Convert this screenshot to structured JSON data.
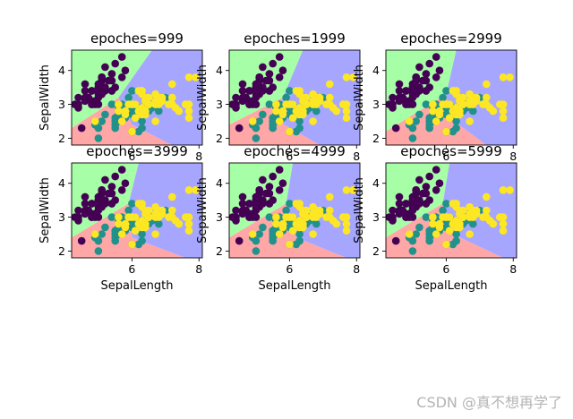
{
  "chart_data": {
    "type": "scatter",
    "subplot_grid": {
      "rows": 2,
      "cols": 3
    },
    "xlim": [
      4.2,
      8.1
    ],
    "ylim": [
      1.8,
      4.6
    ],
    "xticks": [
      6,
      8
    ],
    "yticks": [
      2,
      3,
      4
    ],
    "xlabel": "SepalLength",
    "ylabel": "SepalWidth",
    "region_colors": {
      "setosa": "#a6ffa6",
      "versicolor": "#ffa6a6",
      "virginica": "#a6a6ff"
    },
    "point_colors": {
      "setosa": "#440154",
      "versicolor": "#21918c",
      "virginica": "#fde725"
    },
    "points": {
      "setosa": [
        [
          5.1,
          3.5
        ],
        [
          4.9,
          3.0
        ],
        [
          4.7,
          3.2
        ],
        [
          4.6,
          3.1
        ],
        [
          5.0,
          3.6
        ],
        [
          5.4,
          3.9
        ],
        [
          4.6,
          3.4
        ],
        [
          5.0,
          3.4
        ],
        [
          4.4,
          2.9
        ],
        [
          4.9,
          3.1
        ],
        [
          5.4,
          3.7
        ],
        [
          4.8,
          3.4
        ],
        [
          4.8,
          3.0
        ],
        [
          4.3,
          3.0
        ],
        [
          5.8,
          4.0
        ],
        [
          5.7,
          4.4
        ],
        [
          5.4,
          3.9
        ],
        [
          5.1,
          3.5
        ],
        [
          5.7,
          3.8
        ],
        [
          5.1,
          3.8
        ],
        [
          5.4,
          3.4
        ],
        [
          5.1,
          3.7
        ],
        [
          4.6,
          3.6
        ],
        [
          5.1,
          3.3
        ],
        [
          4.8,
          3.4
        ],
        [
          5.0,
          3.0
        ],
        [
          5.0,
          3.4
        ],
        [
          5.2,
          3.5
        ],
        [
          5.2,
          3.4
        ],
        [
          4.7,
          3.2
        ],
        [
          4.8,
          3.1
        ],
        [
          5.4,
          3.4
        ],
        [
          5.2,
          4.1
        ],
        [
          5.5,
          4.2
        ],
        [
          4.9,
          3.1
        ],
        [
          5.0,
          3.2
        ],
        [
          5.5,
          3.5
        ],
        [
          4.4,
          3.0
        ],
        [
          5.1,
          3.4
        ],
        [
          5.0,
          3.5
        ],
        [
          4.5,
          2.3
        ],
        [
          4.4,
          3.2
        ],
        [
          5.0,
          3.5
        ],
        [
          5.1,
          3.8
        ],
        [
          4.8,
          3.0
        ],
        [
          5.1,
          3.8
        ],
        [
          4.6,
          3.2
        ],
        [
          5.3,
          3.7
        ],
        [
          5.0,
          3.3
        ]
      ],
      "versicolor": [
        [
          7.0,
          3.2
        ],
        [
          6.4,
          3.2
        ],
        [
          6.9,
          3.1
        ],
        [
          5.5,
          2.3
        ],
        [
          6.5,
          2.8
        ],
        [
          5.7,
          2.8
        ],
        [
          6.3,
          3.3
        ],
        [
          4.9,
          2.4
        ],
        [
          6.6,
          2.9
        ],
        [
          5.2,
          2.7
        ],
        [
          5.0,
          2.0
        ],
        [
          5.9,
          3.0
        ],
        [
          6.0,
          2.2
        ],
        [
          6.1,
          2.9
        ],
        [
          5.6,
          2.9
        ],
        [
          6.7,
          3.1
        ],
        [
          5.6,
          3.0
        ],
        [
          5.8,
          2.7
        ],
        [
          6.2,
          2.2
        ],
        [
          5.6,
          2.5
        ],
        [
          5.9,
          3.2
        ],
        [
          6.1,
          2.8
        ],
        [
          6.3,
          2.5
        ],
        [
          6.1,
          2.8
        ],
        [
          6.4,
          2.9
        ],
        [
          6.6,
          3.0
        ],
        [
          6.8,
          2.8
        ],
        [
          6.7,
          3.0
        ],
        [
          6.0,
          2.9
        ],
        [
          5.7,
          2.6
        ],
        [
          5.5,
          2.4
        ],
        [
          5.8,
          2.7
        ],
        [
          6.0,
          2.7
        ],
        [
          5.4,
          3.0
        ],
        [
          6.0,
          3.4
        ],
        [
          6.7,
          3.1
        ],
        [
          6.3,
          2.3
        ],
        [
          5.5,
          2.5
        ],
        [
          5.5,
          2.6
        ],
        [
          6.1,
          3.0
        ],
        [
          5.8,
          2.6
        ],
        [
          5.0,
          2.3
        ],
        [
          5.6,
          2.7
        ],
        [
          5.7,
          3.0
        ],
        [
          5.7,
          2.9
        ],
        [
          6.2,
          2.9
        ],
        [
          5.1,
          2.5
        ],
        [
          5.7,
          2.8
        ]
      ],
      "virginica": [
        [
          6.3,
          3.3
        ],
        [
          5.8,
          2.7
        ],
        [
          7.1,
          3.0
        ],
        [
          6.3,
          2.9
        ],
        [
          6.5,
          3.0
        ],
        [
          7.6,
          3.0
        ],
        [
          4.9,
          2.5
        ],
        [
          7.3,
          2.9
        ],
        [
          6.7,
          2.5
        ],
        [
          7.2,
          3.6
        ],
        [
          6.5,
          3.2
        ],
        [
          6.4,
          2.7
        ],
        [
          6.8,
          3.0
        ],
        [
          5.7,
          2.5
        ],
        [
          5.8,
          2.8
        ],
        [
          6.4,
          3.2
        ],
        [
          6.5,
          3.0
        ],
        [
          7.7,
          3.8
        ],
        [
          7.7,
          2.6
        ],
        [
          6.0,
          2.2
        ],
        [
          6.9,
          3.2
        ],
        [
          5.6,
          2.8
        ],
        [
          7.7,
          2.8
        ],
        [
          6.3,
          2.7
        ],
        [
          6.7,
          3.3
        ],
        [
          7.2,
          3.2
        ],
        [
          6.2,
          2.8
        ],
        [
          6.1,
          3.0
        ],
        [
          6.4,
          2.8
        ],
        [
          7.2,
          3.0
        ],
        [
          7.4,
          2.8
        ],
        [
          7.9,
          3.8
        ],
        [
          6.3,
          2.8
        ],
        [
          6.1,
          2.6
        ],
        [
          7.7,
          3.0
        ],
        [
          6.3,
          3.4
        ],
        [
          6.4,
          3.1
        ],
        [
          6.0,
          3.0
        ],
        [
          6.9,
          3.1
        ],
        [
          6.7,
          3.1
        ],
        [
          6.9,
          3.1
        ],
        [
          6.8,
          3.2
        ],
        [
          6.7,
          3.0
        ],
        [
          6.5,
          3.0
        ],
        [
          6.2,
          3.4
        ],
        [
          5.9,
          3.0
        ],
        [
          5.6,
          3.0
        ]
      ]
    },
    "subplots": [
      {
        "title": "epoches=999",
        "regions": {
          "setosa": [
            [
              4.2,
              4.6
            ],
            [
              6.6,
              4.6
            ],
            [
              5.6,
              3.2
            ],
            [
              4.2,
              2.3
            ]
          ],
          "versicolor": [
            [
              4.2,
              2.3
            ],
            [
              5.6,
              3.2
            ],
            [
              6.0,
              2.4
            ],
            [
              7.2,
              1.8
            ],
            [
              4.2,
              1.8
            ]
          ],
          "virginica": [
            [
              6.6,
              4.6
            ],
            [
              8.1,
              4.6
            ],
            [
              8.1,
              1.8
            ],
            [
              7.2,
              1.8
            ],
            [
              6.0,
              2.4
            ],
            [
              5.6,
              3.2
            ]
          ]
        }
      },
      {
        "title": "epoches=1999",
        "regions": {
          "setosa": [
            [
              4.2,
              4.6
            ],
            [
              6.4,
              4.6
            ],
            [
              5.8,
              3.2
            ],
            [
              4.2,
              2.4
            ]
          ],
          "versicolor": [
            [
              4.2,
              2.4
            ],
            [
              5.8,
              3.2
            ],
            [
              5.5,
              2.6
            ],
            [
              6.9,
              1.8
            ],
            [
              4.2,
              1.8
            ]
          ],
          "virginica": [
            [
              6.4,
              4.6
            ],
            [
              8.1,
              4.6
            ],
            [
              8.1,
              1.8
            ],
            [
              6.9,
              1.8
            ],
            [
              5.5,
              2.6
            ],
            [
              5.8,
              3.2
            ]
          ]
        }
      },
      {
        "title": "epoches=2999",
        "regions": {
          "setosa": [
            [
              4.2,
              4.6
            ],
            [
              6.3,
              4.6
            ],
            [
              6.0,
              3.3
            ],
            [
              4.2,
              2.2
            ]
          ],
          "versicolor": [
            [
              4.2,
              2.2
            ],
            [
              6.0,
              3.3
            ],
            [
              6.1,
              2.6
            ],
            [
              7.2,
              1.8
            ],
            [
              4.2,
              1.8
            ]
          ],
          "virginica": [
            [
              6.3,
              4.6
            ],
            [
              8.1,
              4.6
            ],
            [
              8.1,
              1.8
            ],
            [
              7.2,
              1.8
            ],
            [
              6.1,
              2.6
            ],
            [
              6.0,
              3.3
            ]
          ]
        }
      },
      {
        "title": "epoches=3999",
        "regions": {
          "setosa": [
            [
              4.2,
              4.6
            ],
            [
              6.2,
              4.6
            ],
            [
              5.9,
              3.4
            ],
            [
              4.2,
              2.4
            ]
          ],
          "versicolor": [
            [
              4.2,
              2.4
            ],
            [
              5.9,
              3.4
            ],
            [
              6.0,
              2.4
            ],
            [
              7.6,
              1.8
            ],
            [
              4.2,
              1.8
            ]
          ],
          "virginica": [
            [
              6.2,
              4.6
            ],
            [
              8.1,
              4.6
            ],
            [
              8.1,
              1.8
            ],
            [
              7.6,
              1.8
            ],
            [
              6.0,
              2.4
            ],
            [
              5.9,
              3.4
            ]
          ]
        }
      },
      {
        "title": "epoches=4999",
        "regions": {
          "setosa": [
            [
              4.2,
              4.6
            ],
            [
              6.1,
              4.6
            ],
            [
              5.9,
              3.4
            ],
            [
              4.2,
              2.4
            ]
          ],
          "versicolor": [
            [
              4.2,
              2.4
            ],
            [
              5.9,
              3.4
            ],
            [
              6.2,
              2.4
            ],
            [
              7.7,
              1.8
            ],
            [
              4.2,
              1.8
            ]
          ],
          "virginica": [
            [
              6.1,
              4.6
            ],
            [
              8.1,
              4.6
            ],
            [
              8.1,
              1.8
            ],
            [
              7.7,
              1.8
            ],
            [
              6.2,
              2.4
            ],
            [
              5.9,
              3.4
            ]
          ]
        }
      },
      {
        "title": "epoches=5999",
        "regions": {
          "setosa": [
            [
              4.2,
              4.6
            ],
            [
              6.1,
              4.6
            ],
            [
              5.9,
              3.4
            ],
            [
              4.2,
              2.4
            ]
          ],
          "versicolor": [
            [
              4.2,
              2.4
            ],
            [
              5.9,
              3.4
            ],
            [
              6.2,
              2.5
            ],
            [
              7.7,
              1.8
            ],
            [
              4.2,
              1.8
            ]
          ],
          "virginica": [
            [
              6.1,
              4.6
            ],
            [
              8.1,
              4.6
            ],
            [
              8.1,
              1.8
            ],
            [
              7.7,
              1.8
            ],
            [
              6.2,
              2.5
            ],
            [
              5.9,
              3.4
            ]
          ]
        }
      }
    ]
  },
  "watermark": "CSDN @真不想再学了"
}
